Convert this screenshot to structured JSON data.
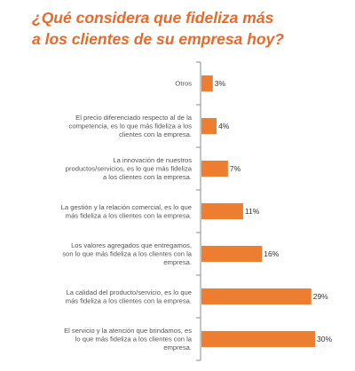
{
  "title": {
    "line1": "¿Qué considera que fideliza más",
    "line2": "a los clientes de su empresa hoy?"
  },
  "colors": {
    "bar": "#ed7d31",
    "title": "#e8692a",
    "axis": "#8c8c8c"
  },
  "chart_data": {
    "type": "bar",
    "orientation": "horizontal",
    "title": "¿Qué considera que fideliza más a los clientes de su empresa hoy?",
    "xlabel": "",
    "ylabel": "",
    "xlim": [
      0,
      30
    ],
    "grid": false,
    "categories": [
      "Otros",
      "El precio diferenciado respecto al de la competencia, es lo que más fideliza a los clientes con la empresa.",
      "La innovación de nuestros productos/servicios, es lo que más fideliza a los clientes con la empresa.",
      "La gestión y la relación comercial, es lo que más fideliza a los clientes con la empresa.",
      "Los valores agregados que entregamos, son lo que más fideliza a los clientes con la empresa.",
      "La calidad del producto/servicio, es lo que más fideliza a los clientes con la empresa.",
      "El servicio y la atención que brindamos, es lo que más fideliza a los clientes con la empresa."
    ],
    "category_lines": [
      [
        "Otros"
      ],
      [
        "El precio diferenciado respecto al de la",
        "competencia, es lo que más fideliza a los",
        "clientes con la empresa."
      ],
      [
        "La innovación de nuestros",
        "productos/servicios, es lo que más fideliza",
        "a los clientes con la empresa."
      ],
      [
        "La gestión y la relación comercial, es lo que",
        "más fideliza a los clientes con la empresa."
      ],
      [
        "Los valores agregados que entregamos,",
        "son lo que más fideliza a los clientes con la",
        "empresa."
      ],
      [
        "La calidad del producto/servicio, es lo que",
        "más fideliza a los clientes con la empresa."
      ],
      [
        "El servicio y la atención que brindamos, es",
        "lo que más fideliza a los clientes con la",
        "empresa."
      ]
    ],
    "values": [
      3,
      4,
      7,
      11,
      16,
      29,
      30
    ],
    "value_labels": [
      "3%",
      "4%",
      "7%",
      "11%",
      "16%",
      "29%",
      "30%"
    ]
  }
}
